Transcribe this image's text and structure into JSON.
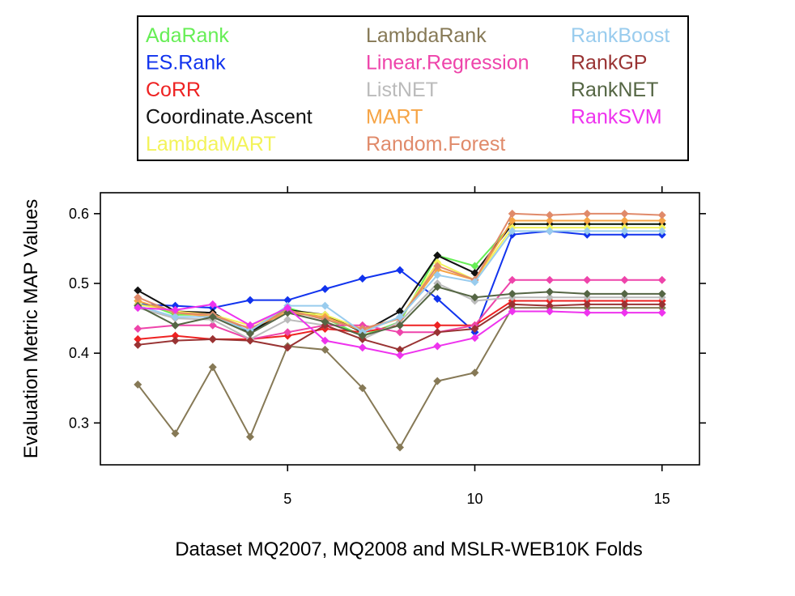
{
  "chart_data": {
    "type": "line",
    "title": "",
    "xlabel": "Dataset MQ2007, MQ2008 and MSLR-WEB10K Folds",
    "ylabel": "Evaluation Metric MAP Values",
    "xlim": [
      0,
      16
    ],
    "ylim": [
      0.24,
      0.63
    ],
    "xticks": [
      5,
      10,
      15
    ],
    "yticks": [
      0.3,
      0.4,
      0.5,
      0.6
    ],
    "x": [
      1,
      2,
      3,
      4,
      5,
      6,
      7,
      8,
      9,
      10,
      11,
      12,
      13,
      14,
      15
    ],
    "grid": false,
    "legend_position": "top",
    "series": [
      {
        "name": "AdaRank",
        "color": "#66ee55",
        "values": [
          0.475,
          0.455,
          0.455,
          0.43,
          0.465,
          0.45,
          0.425,
          0.445,
          0.54,
          0.525,
          0.585,
          0.585,
          0.585,
          0.585,
          0.585
        ]
      },
      {
        "name": "ES.Rank",
        "color": "#1133ee",
        "values": [
          0.47,
          0.468,
          0.465,
          0.476,
          0.476,
          0.492,
          0.507,
          0.519,
          0.478,
          0.43,
          0.57,
          0.575,
          0.57,
          0.57,
          0.57
        ]
      },
      {
        "name": "CoRR",
        "color": "#ee2222",
        "values": [
          0.42,
          0.425,
          0.42,
          0.42,
          0.425,
          0.435,
          0.43,
          0.44,
          0.44,
          0.44,
          0.475,
          0.475,
          0.475,
          0.475,
          0.475
        ]
      },
      {
        "name": "Coordinate.Ascent",
        "color": "#111111",
        "values": [
          0.49,
          0.46,
          0.458,
          0.43,
          0.462,
          0.455,
          0.43,
          0.46,
          0.54,
          0.515,
          0.585,
          0.585,
          0.585,
          0.585,
          0.585
        ]
      },
      {
        "name": "LambdaMART",
        "color": "#f3f35a",
        "values": [
          0.47,
          0.46,
          0.455,
          0.44,
          0.46,
          0.455,
          0.435,
          0.45,
          0.53,
          0.505,
          0.58,
          0.58,
          0.58,
          0.58,
          0.58
        ]
      },
      {
        "name": "LambdaRank",
        "color": "#867956",
        "values": [
          0.355,
          0.285,
          0.38,
          0.28,
          0.41,
          0.405,
          0.35,
          0.265,
          0.36,
          0.372,
          0.465,
          0.465,
          0.465,
          0.465,
          0.465
        ]
      },
      {
        "name": "Linear.Regression",
        "color": "#ee44aa",
        "values": [
          0.435,
          0.44,
          0.44,
          0.42,
          0.43,
          0.44,
          0.44,
          0.43,
          0.43,
          0.44,
          0.505,
          0.505,
          0.505,
          0.505,
          0.505
        ]
      },
      {
        "name": "ListNET",
        "color": "#bbbbbb",
        "values": [
          0.465,
          0.45,
          0.448,
          0.42,
          0.448,
          0.44,
          0.42,
          0.445,
          0.5,
          0.475,
          0.48,
          0.48,
          0.48,
          0.48,
          0.48
        ]
      },
      {
        "name": "MART",
        "color": "#f6a445",
        "values": [
          0.475,
          0.458,
          0.452,
          0.436,
          0.458,
          0.452,
          0.432,
          0.45,
          0.52,
          0.505,
          0.59,
          0.59,
          0.59,
          0.59,
          0.59
        ]
      },
      {
        "name": "Random.Forest",
        "color": "#e08a6a",
        "values": [
          0.48,
          0.458,
          0.455,
          0.435,
          0.462,
          0.448,
          0.435,
          0.45,
          0.525,
          0.505,
          0.6,
          0.598,
          0.6,
          0.6,
          0.598
        ]
      },
      {
        "name": "RankBoost",
        "color": "#99ccee",
        "values": [
          0.468,
          0.452,
          0.452,
          0.432,
          0.468,
          0.468,
          0.43,
          0.452,
          0.512,
          0.502,
          0.575,
          0.575,
          0.575,
          0.575,
          0.575
        ]
      },
      {
        "name": "RankGP",
        "color": "#993333",
        "values": [
          0.412,
          0.418,
          0.42,
          0.418,
          0.408,
          0.44,
          0.42,
          0.405,
          0.43,
          0.435,
          0.47,
          0.468,
          0.47,
          0.47,
          0.47
        ]
      },
      {
        "name": "RankNET",
        "color": "#556644",
        "values": [
          0.468,
          0.44,
          0.452,
          0.428,
          0.458,
          0.445,
          0.425,
          0.44,
          0.495,
          0.48,
          0.485,
          0.488,
          0.485,
          0.485,
          0.485
        ]
      },
      {
        "name": "RankSVM",
        "color": "#ee33ee",
        "values": [
          0.465,
          0.462,
          0.47,
          0.44,
          0.465,
          0.418,
          0.408,
          0.397,
          0.41,
          0.422,
          0.46,
          0.46,
          0.458,
          0.458,
          0.458
        ]
      }
    ]
  }
}
